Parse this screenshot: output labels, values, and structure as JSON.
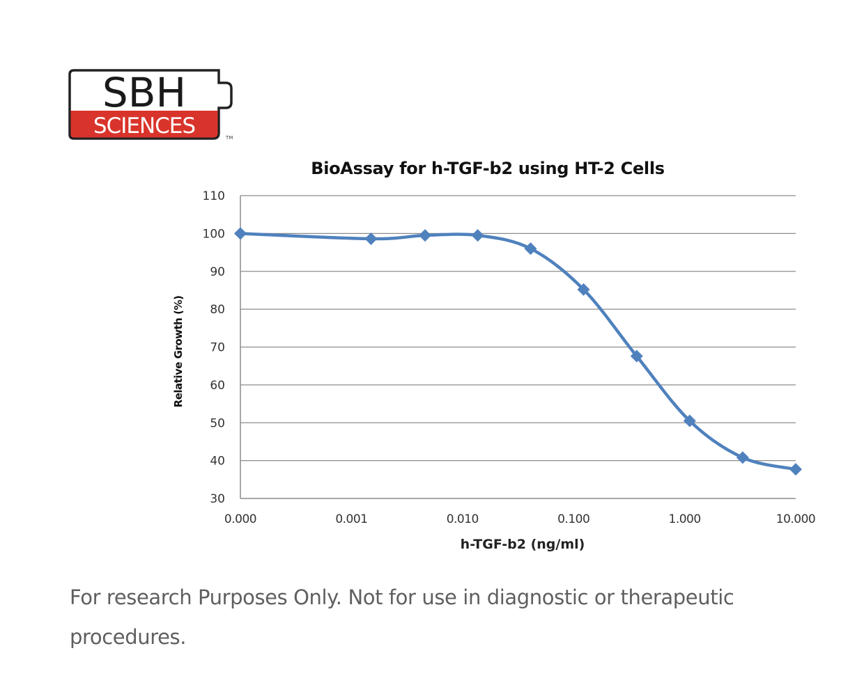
{
  "logo": {
    "top_text": "SBH",
    "bottom_text": "SCIENCES",
    "trademark": "TM",
    "colors": {
      "red": "#d9342b",
      "border": "#222222",
      "white": "#ffffff"
    }
  },
  "chart_data": {
    "type": "line",
    "title": "BioAssay for h-TGF-b2 using HT-2 Cells",
    "xlabel": "h-TGF-b2 (ng/ml)",
    "ylabel": "Relative Growth (%)",
    "x_scale": "log",
    "x_tick_labels": [
      "0.000",
      "0.001",
      "0.010",
      "0.100",
      "1.000",
      "10.000"
    ],
    "y_ticks": [
      30,
      40,
      50,
      60,
      70,
      80,
      90,
      100,
      110
    ],
    "ylim": [
      30,
      110
    ],
    "grid": "horizontal",
    "legend": "none",
    "series": [
      {
        "name": "Relative Growth",
        "color": "#4f81bd",
        "marker": "diamond",
        "smooth": true,
        "x": [
          0.0001,
          0.0015,
          0.0046,
          0.0137,
          0.041,
          0.123,
          0.37,
          1.11,
          3.33,
          10.0
        ],
        "values": [
          100.0,
          98.6,
          99.5,
          99.5,
          96.0,
          85.2,
          67.6,
          50.5,
          40.8,
          37.7
        ]
      }
    ]
  },
  "footer": {
    "disclaimer": "For research Purposes Only. Not for use in diagnostic or therapeutic procedures."
  }
}
